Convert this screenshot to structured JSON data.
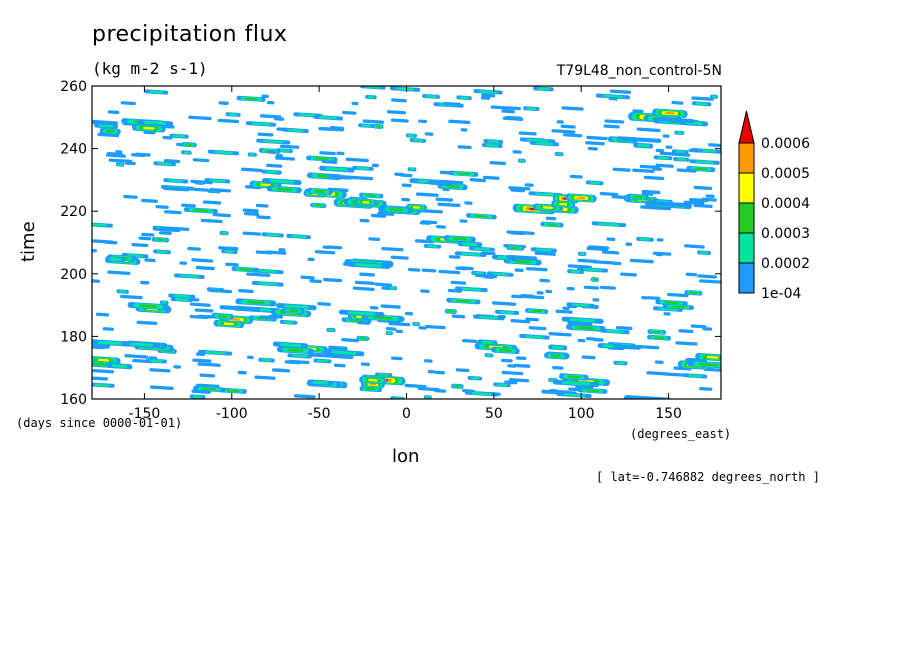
{
  "chart_data": {
    "type": "heatmap",
    "title": "precipitation flux",
    "units": "(kg m-2 s-1)",
    "dataset": "T79L48_non_control-5N",
    "xlabel": "lon",
    "ylabel": "time",
    "x_units": "(degrees_east)",
    "y_units": "(days since 0000-01-01)",
    "footnote": "[ lat=-0.746882 degrees_north ]",
    "xlim": [
      -180,
      180
    ],
    "ylim": [
      160,
      260
    ],
    "xticks": [
      -150,
      -100,
      -50,
      0,
      50,
      100,
      150
    ],
    "xtick_labels": [
      "-150",
      "-100",
      "-50",
      "0",
      "50",
      "100",
      "150"
    ],
    "yticks": [
      160,
      180,
      200,
      220,
      240,
      260
    ],
    "ytick_labels": [
      "160",
      "180",
      "200",
      "220",
      "240",
      "260"
    ],
    "colorbar": {
      "levels": [
        0.0001,
        0.0002,
        0.0003,
        0.0004,
        0.0005,
        0.0006
      ],
      "labels": [
        "1e-04",
        "0.0002",
        "0.0003",
        "0.0004",
        "0.0005",
        "0.0006"
      ],
      "colors": [
        "#1e9bff",
        "#00e6a0",
        "#22cc22",
        "#ffff00",
        "#ff9900",
        "#e60000"
      ],
      "extend": "max"
    },
    "features": [
      {
        "lon": -170,
        "time": 247,
        "level": 3
      },
      {
        "lon": -150,
        "time": 248,
        "level": 4
      },
      {
        "lon": -75,
        "time": 228,
        "level": 4
      },
      {
        "lon": -50,
        "time": 225,
        "level": 5
      },
      {
        "lon": -30,
        "time": 222,
        "level": 6
      },
      {
        "lon": -40,
        "time": 232,
        "level": 3
      },
      {
        "lon": 0,
        "time": 221,
        "level": 5
      },
      {
        "lon": 20,
        "time": 228,
        "level": 3
      },
      {
        "lon": 80,
        "time": 222,
        "level": 6
      },
      {
        "lon": 95,
        "time": 223,
        "level": 6
      },
      {
        "lon": 130,
        "time": 223,
        "level": 5
      },
      {
        "lon": 145,
        "time": 250,
        "level": 6
      },
      {
        "lon": 160,
        "time": 248,
        "level": 3
      },
      {
        "lon": 130,
        "time": 242,
        "level": 3
      },
      {
        "lon": 30,
        "time": 210,
        "level": 4
      },
      {
        "lon": 60,
        "time": 205,
        "level": 3
      },
      {
        "lon": -20,
        "time": 203,
        "level": 4
      },
      {
        "lon": -160,
        "time": 205,
        "level": 4
      },
      {
        "lon": -150,
        "time": 190,
        "level": 5
      },
      {
        "lon": -90,
        "time": 190,
        "level": 3
      },
      {
        "lon": -60,
        "time": 189,
        "level": 4
      },
      {
        "lon": -20,
        "time": 186,
        "level": 4
      },
      {
        "lon": -100,
        "time": 185,
        "level": 5
      },
      {
        "lon": -175,
        "time": 177,
        "level": 3
      },
      {
        "lon": -150,
        "time": 176,
        "level": 4
      },
      {
        "lon": -60,
        "time": 176,
        "level": 4
      },
      {
        "lon": -40,
        "time": 175,
        "level": 3
      },
      {
        "lon": 50,
        "time": 177,
        "level": 4
      },
      {
        "lon": 80,
        "time": 175,
        "level": 4
      },
      {
        "lon": 120,
        "time": 176,
        "level": 3
      },
      {
        "lon": 170,
        "time": 172,
        "level": 5
      },
      {
        "lon": -20,
        "time": 166,
        "level": 6
      },
      {
        "lon": -50,
        "time": 164,
        "level": 4
      },
      {
        "lon": 100,
        "time": 166,
        "level": 4
      },
      {
        "lon": 140,
        "time": 160,
        "level": 3
      },
      {
        "lon": 100,
        "time": 184,
        "level": 3
      },
      {
        "lon": -170,
        "time": 171,
        "level": 4
      },
      {
        "lon": 150,
        "time": 222,
        "level": 3
      }
    ]
  }
}
